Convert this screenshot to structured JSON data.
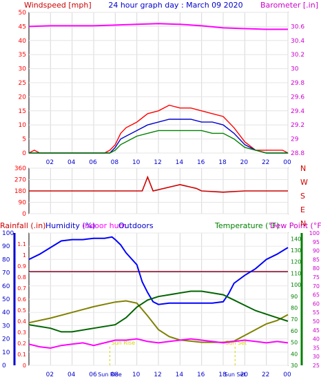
{
  "header": {
    "left_label": "Windspeed [mph]",
    "center_label": "24 hour graph day : March 09 2020",
    "right_label": "Barometer [.in]"
  },
  "x_axis": {
    "hour_labels": [
      "02",
      "04",
      "06",
      "08",
      "10",
      "12",
      "14",
      "16",
      "18",
      "20",
      "22",
      "00"
    ]
  },
  "panel_bottom": {
    "title_rain": "Rainfall (.in)",
    "title_humidity": "Humidity (%)",
    "title_indoor": "Indoor hum",
    "title_outdoor": "Outdoors",
    "title_temp": "Temperature (°F)",
    "title_dew": "Dew Point (°F)",
    "sunrise_label": "Sun Rise",
    "sunset_label": "Sun Set",
    "sun_tick_labels": [
      "Sun Rise",
      "Sun Set"
    ]
  },
  "colors": {
    "wind": "#ff0000",
    "gust": "#0000cc",
    "avgwind": "#008000",
    "baro": "#ff00ff",
    "direction": "#cc0000",
    "humidity": "#0000ff",
    "temperature": "#808000",
    "dewpoint": "#006400",
    "indoor": "#ff00ff",
    "rain": "#800020",
    "sun": "#d4d400",
    "axis_left": "#ff0000",
    "axis_right": "#cc00cc",
    "axis_blue": "#0000cc",
    "axis_green": "#008000",
    "title": "#0000cc"
  },
  "chart_data": [
    {
      "type": "line",
      "title": "24 hour graph day : March 09 2020",
      "x_range": [
        0,
        24
      ],
      "left_axis": {
        "label": "Windspeed [mph]",
        "ylim": [
          0,
          50
        ],
        "ticks": [
          0,
          5,
          10,
          15,
          20,
          25,
          30,
          35,
          40,
          45,
          50
        ]
      },
      "right_axis": {
        "label": "Barometer [.in]",
        "ylim": [
          28.8,
          30.8
        ],
        "ticks": [
          "28.8",
          "29",
          "29.2",
          "29.4",
          "29.6",
          "29.8",
          "30",
          "30.2",
          "30.4",
          "30.6"
        ]
      },
      "series": [
        {
          "key": "wind",
          "axis": "left",
          "x": [
            0,
            0.5,
            1,
            1.5,
            2,
            3,
            4,
            5,
            6,
            7,
            7.5,
            8,
            8.5,
            9,
            10,
            11,
            12,
            13,
            14,
            15,
            16,
            17,
            18,
            19,
            20,
            21,
            22,
            23,
            23.5,
            24
          ],
          "y": [
            0,
            1,
            0,
            0,
            0,
            0,
            0,
            0,
            0,
            0,
            1,
            3,
            7,
            9,
            11,
            14,
            15,
            17,
            16,
            16,
            15,
            14,
            13,
            9,
            4,
            1,
            1,
            1,
            1,
            0
          ]
        },
        {
          "key": "gust",
          "axis": "left",
          "x": [
            0,
            2,
            4,
            6,
            7.5,
            8,
            8.5,
            9,
            10,
            11,
            12,
            13,
            14,
            15,
            16,
            17,
            18,
            19,
            20,
            21,
            22,
            24
          ],
          "y": [
            0,
            0,
            0,
            0,
            0,
            2,
            5,
            6,
            8,
            10,
            11,
            12,
            12,
            12,
            11,
            11,
            10,
            7,
            3,
            1,
            0,
            0
          ]
        },
        {
          "key": "avgwind",
          "axis": "left",
          "x": [
            0,
            2,
            4,
            6,
            7.5,
            8,
            8.5,
            9,
            10,
            11,
            12,
            13,
            14,
            15,
            16,
            17,
            18,
            19,
            20,
            21,
            22,
            24
          ],
          "y": [
            0,
            0,
            0,
            0,
            0,
            1,
            3,
            4,
            6,
            7,
            8,
            8,
            8,
            8,
            8,
            7,
            7,
            5,
            2,
            1,
            0,
            0
          ]
        },
        {
          "key": "baro",
          "axis": "right",
          "x": [
            0,
            2,
            4,
            6,
            8,
            10,
            12,
            14,
            16,
            18,
            20,
            22,
            24
          ],
          "y": [
            30.6,
            30.61,
            30.61,
            30.61,
            30.62,
            30.63,
            30.64,
            30.63,
            30.61,
            30.58,
            30.57,
            30.56,
            30.56
          ]
        }
      ]
    },
    {
      "type": "scatter",
      "y_ticks": [
        "360",
        "270",
        "180",
        "90",
        "0"
      ],
      "compass_labels": [
        "N",
        "W",
        "S",
        "E",
        "N"
      ],
      "ylim": [
        0,
        360
      ],
      "series": [
        {
          "key": "direction",
          "x": [
            0,
            4,
            8,
            10.5,
            11,
            11.5,
            14,
            14.5,
            15,
            15.5,
            16,
            18,
            20,
            24
          ],
          "y": [
            180,
            180,
            180,
            180,
            290,
            180,
            230,
            220,
            210,
            200,
            180,
            170,
            180,
            180
          ]
        }
      ]
    },
    {
      "type": "line",
      "axis_rain": {
        "label": "Rainfall (.in)",
        "ylim": [
          0,
          1.2
        ],
        "ticks": [
          "0",
          "0.1",
          "0.2",
          "0.3",
          "0.4",
          "0.5",
          "0.6",
          "0.7",
          "0.8",
          "0.9",
          "1",
          "1.1"
        ]
      },
      "axis_humidity": {
        "label": "Humidity (%)",
        "ylim": [
          0,
          100
        ],
        "ticks": [
          "0",
          "10",
          "20",
          "30",
          "40",
          "50",
          "60",
          "70",
          "80",
          "90",
          "100"
        ]
      },
      "axis_temp": {
        "label": "Temperature (°F)",
        "ylim": [
          30,
          145
        ],
        "ticks": [
          "30",
          "40",
          "50",
          "60",
          "70",
          "80",
          "90",
          "100",
          "110",
          "120",
          "130",
          "140"
        ]
      },
      "axis_dew": {
        "label": "Dew Point (°F)",
        "ylim": [
          25,
          100
        ],
        "ticks": [
          "25",
          "30",
          "35",
          "40",
          "45",
          "50",
          "55",
          "60",
          "65",
          "70",
          "75",
          "80",
          "85",
          "90",
          "95",
          "100"
        ]
      },
      "series": [
        {
          "key": "humidity",
          "axis": "humidity",
          "x": [
            0,
            1,
            2,
            3,
            4,
            5,
            6,
            7,
            7.7,
            8,
            8.5,
            9,
            10,
            10.5,
            11,
            11.5,
            12,
            13,
            14,
            15,
            16,
            17,
            18,
            18.5,
            19,
            20,
            21,
            22,
            23,
            24
          ],
          "y": [
            80,
            84,
            89,
            94,
            95,
            95,
            96,
            96,
            97,
            95,
            91,
            85,
            76,
            63,
            55,
            48,
            46,
            47,
            47,
            47,
            47,
            47,
            48,
            54,
            62,
            68,
            73,
            80,
            84,
            89
          ]
        },
        {
          "key": "temperature",
          "axis": "temp",
          "x": [
            0,
            2,
            4,
            6,
            8,
            9,
            10,
            11,
            12,
            13,
            14,
            15,
            16,
            17,
            18,
            19,
            20,
            21,
            22,
            23,
            24
          ],
          "y": [
            67,
            71,
            76,
            81,
            85,
            86,
            84,
            73,
            61,
            55,
            52,
            51,
            50,
            50,
            50,
            51,
            56,
            61,
            66,
            69,
            74
          ]
        },
        {
          "key": "dewpoint",
          "axis": "dew",
          "x": [
            0,
            2,
            3,
            4,
            6,
            8,
            9,
            10,
            11,
            12,
            13,
            14,
            15,
            16,
            17,
            18,
            19,
            20,
            21,
            22,
            23,
            24
          ],
          "y": [
            48,
            46,
            44,
            44,
            46,
            48,
            52,
            58,
            62,
            64,
            65,
            66,
            67,
            67,
            66,
            65,
            62,
            59,
            56,
            54,
            52,
            50
          ]
        },
        {
          "key": "indoor",
          "axis": "humidity",
          "x": [
            0,
            1,
            2,
            3,
            4,
            5,
            6,
            7,
            8,
            9,
            10,
            11,
            12,
            13,
            14,
            15,
            16,
            17,
            18,
            19,
            20,
            21,
            22,
            23,
            24
          ],
          "y": [
            16,
            14,
            13,
            15,
            16,
            17,
            15,
            17,
            19,
            19,
            20,
            18,
            17,
            18,
            19,
            20,
            19,
            18,
            17,
            18,
            19,
            18,
            17,
            18,
            17
          ]
        }
      ],
      "rain_reference_line": 0.85,
      "sunrise_hour": 7.5,
      "sunset_hour": 19.1
    }
  ]
}
